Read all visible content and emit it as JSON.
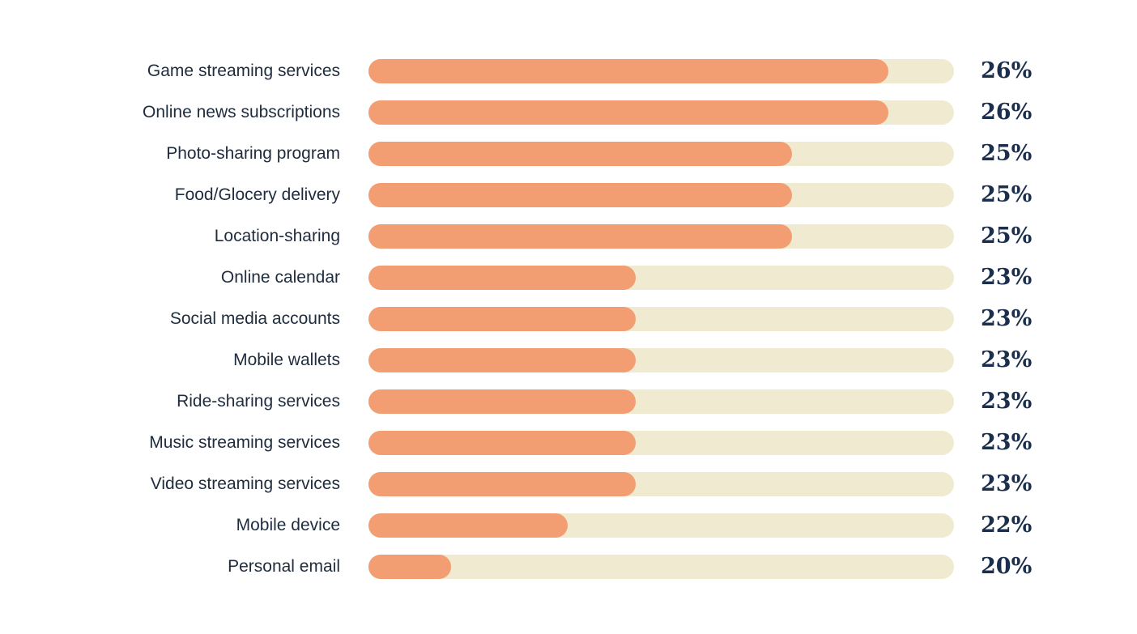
{
  "page": {
    "background": "#ffffff"
  },
  "chart_data": {
    "type": "bar",
    "orientation": "horizontal",
    "title": "",
    "xlabel": "",
    "ylabel": "",
    "legend": false,
    "grid": false,
    "value_suffix": "%",
    "categories": [
      "Game streaming services",
      "Online news subscriptions",
      "Photo-sharing program",
      "Food/Glocery delivery",
      "Location-sharing",
      "Online calendar",
      "Social media accounts",
      "Mobile wallets",
      "Ride-sharing services",
      "Music streaming services",
      "Video streaming services",
      "Mobile device",
      "Personal email"
    ],
    "values": [
      26,
      26,
      25,
      25,
      25,
      23,
      23,
      23,
      23,
      23,
      23,
      22,
      20
    ],
    "value_labels": [
      "26%",
      "26%",
      "25%",
      "25%",
      "25%",
      "23%",
      "23%",
      "23%",
      "23%",
      "23%",
      "23%",
      "22%",
      "20%"
    ],
    "bar_fill_fractions": [
      0.888,
      0.888,
      0.723,
      0.723,
      0.723,
      0.456,
      0.456,
      0.456,
      0.456,
      0.456,
      0.456,
      0.34,
      0.141
    ],
    "colors": {
      "bar_fill": "#f39d72",
      "bar_track": "#f0ead1",
      "label_text": "#1e2c3e",
      "value_text": "#1b2f4d",
      "background": "#ffffff"
    }
  }
}
